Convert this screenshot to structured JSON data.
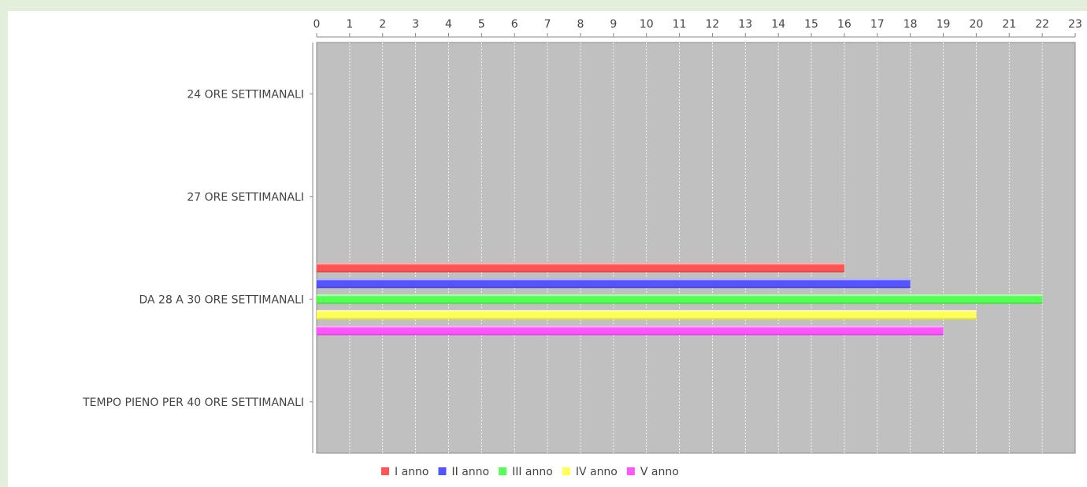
{
  "chart_data": {
    "type": "bar",
    "orientation": "horizontal",
    "categories": [
      "24 ORE SETTIMANALI",
      "27 ORE SETTIMANALI",
      "DA 28 A 30 ORE SETTIMANALI",
      "TEMPO PIENO PER 40 ORE SETTIMANALI"
    ],
    "series": [
      {
        "name": "I anno",
        "color": "#ff5555",
        "values": [
          0,
          0,
          16,
          0
        ]
      },
      {
        "name": "II anno",
        "color": "#5555ff",
        "values": [
          0,
          0,
          18,
          0
        ]
      },
      {
        "name": "III anno",
        "color": "#55ff55",
        "values": [
          0,
          0,
          22,
          0
        ]
      },
      {
        "name": "IV anno",
        "color": "#ffff55",
        "values": [
          0,
          0,
          20,
          0
        ]
      },
      {
        "name": "V anno",
        "color": "#ff55ff",
        "values": [
          0,
          0,
          19,
          0
        ]
      }
    ],
    "xlim": [
      0,
      23
    ],
    "x_ticks": [
      0,
      1,
      2,
      3,
      4,
      5,
      6,
      7,
      8,
      9,
      10,
      11,
      12,
      13,
      14,
      15,
      16,
      17,
      18,
      19,
      20,
      21,
      22,
      23
    ],
    "x_axis_position": "top",
    "grid": true,
    "plot_background": "#c0c0c0",
    "legend_position": "bottom",
    "title": "",
    "xlabel": "",
    "ylabel": ""
  }
}
